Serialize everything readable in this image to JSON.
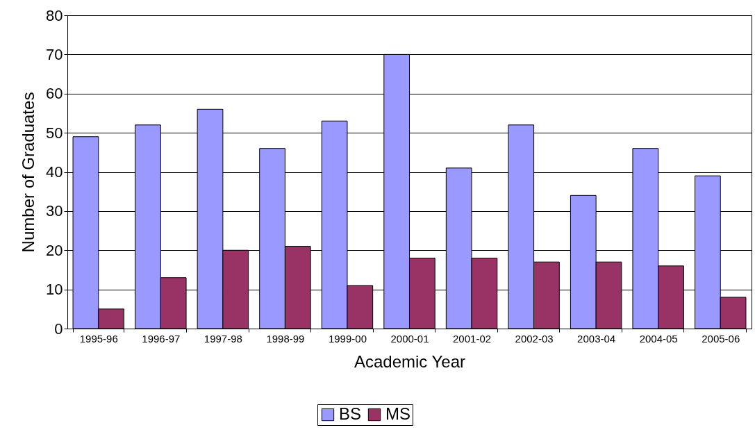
{
  "chart_data": {
    "type": "bar",
    "xlabel": "Academic Year",
    "ylabel": "Number of Graduates",
    "categories": [
      "1995-96",
      "1996-97",
      "1997-98",
      "1998-99",
      "1999-00",
      "2000-01",
      "2001-02",
      "2002-03",
      "2003-04",
      "2004-05",
      "2005-06"
    ],
    "series": [
      {
        "name": "BS",
        "color": "#9999ff",
        "values": [
          49,
          52,
          56,
          46,
          53,
          70,
          41,
          52,
          34,
          46,
          39
        ]
      },
      {
        "name": "MS",
        "color": "#993366",
        "values": [
          5,
          13,
          20,
          21,
          11,
          18,
          18,
          17,
          17,
          16,
          8
        ]
      }
    ],
    "ylim": [
      0,
      80
    ],
    "yticks": [
      0,
      10,
      20,
      30,
      40,
      50,
      60,
      70,
      80
    ],
    "grid": "y",
    "legend": "bottom"
  }
}
